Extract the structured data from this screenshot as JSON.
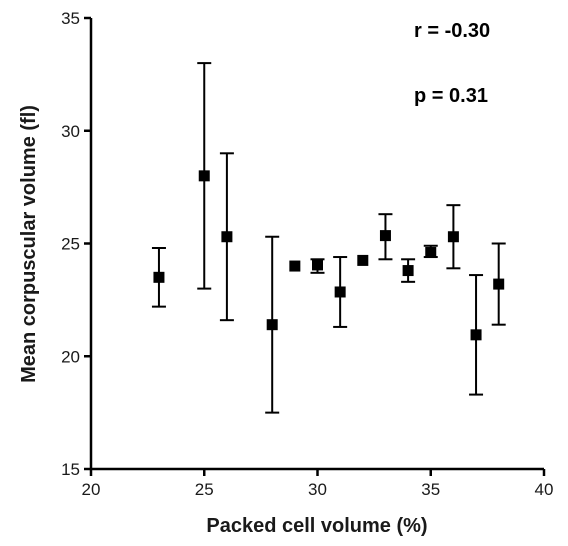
{
  "chart_data": {
    "type": "scatter",
    "xlabel": "Packed cell volume (%)",
    "ylabel": "Mean corpuscular volume (fl)",
    "xlim": [
      20,
      40
    ],
    "ylim": [
      15,
      35
    ],
    "x_ticks": [
      "20",
      "25",
      "30",
      "35",
      "40"
    ],
    "y_ticks": [
      "15",
      "20",
      "25",
      "30",
      "35"
    ],
    "x_tick_values": [
      20,
      25,
      30,
      35,
      40
    ],
    "y_tick_values": [
      15,
      20,
      25,
      30,
      35
    ],
    "grid": false,
    "legend": "none",
    "annotations": {
      "r": "r = -0.30",
      "p": "p = 0.31"
    },
    "points": [
      {
        "x": 23,
        "y": 23.5,
        "lo": 22.2,
        "hi": 24.8
      },
      {
        "x": 25,
        "y": 28.0,
        "lo": 23.0,
        "hi": 33.0
      },
      {
        "x": 26,
        "y": 25.3,
        "lo": 21.6,
        "hi": 29.0
      },
      {
        "x": 28,
        "y": 21.4,
        "lo": 17.5,
        "hi": 25.3
      },
      {
        "x": 29,
        "y": 24.0,
        "lo": 24.0,
        "hi": 24.0
      },
      {
        "x": 30,
        "y": 24.05,
        "lo": 23.7,
        "hi": 24.3
      },
      {
        "x": 31,
        "y": 22.85,
        "lo": 21.3,
        "hi": 24.4
      },
      {
        "x": 32,
        "y": 24.25,
        "lo": 24.25,
        "hi": 24.25
      },
      {
        "x": 33,
        "y": 25.35,
        "lo": 24.3,
        "hi": 26.3
      },
      {
        "x": 34,
        "y": 23.8,
        "lo": 23.3,
        "hi": 24.3
      },
      {
        "x": 35,
        "y": 24.6,
        "lo": 24.4,
        "hi": 24.9
      },
      {
        "x": 36,
        "y": 25.3,
        "lo": 23.9,
        "hi": 26.7
      },
      {
        "x": 37,
        "y": 20.95,
        "lo": 18.3,
        "hi": 23.6
      },
      {
        "x": 38,
        "y": 23.2,
        "lo": 21.4,
        "hi": 25.0
      }
    ]
  }
}
